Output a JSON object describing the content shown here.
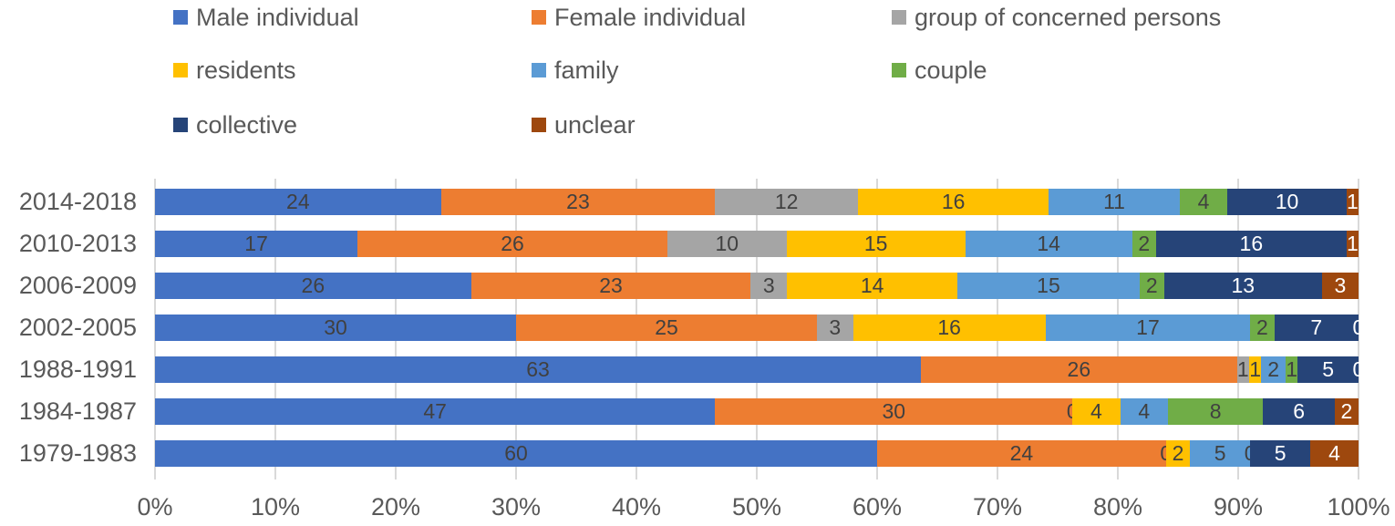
{
  "chart_data": {
    "type": "bar",
    "orientation": "horizontal",
    "stacked": "100-percent",
    "title": "",
    "xlabel": "",
    "ylabel": "",
    "categories": [
      "2014-2018",
      "2010-2013",
      "2006-2009",
      "2002-2005",
      "1988-1991",
      "1984-1987",
      "1979-1983"
    ],
    "series": [
      {
        "name": "Male individual",
        "color": "#4472C4",
        "label_color": "#404040",
        "values": [
          24,
          17,
          26,
          30,
          63,
          47,
          60
        ]
      },
      {
        "name": "Female individual",
        "color": "#ED7D31",
        "label_color": "#404040",
        "values": [
          23,
          26,
          23,
          25,
          26,
          30,
          24
        ]
      },
      {
        "name": "group of concerned persons",
        "color": "#A5A5A5",
        "label_color": "#404040",
        "values": [
          12,
          10,
          3,
          3,
          1,
          0,
          0
        ]
      },
      {
        "name": "residents",
        "color": "#FFC000",
        "label_color": "#404040",
        "values": [
          16,
          15,
          14,
          16,
          1,
          4,
          2
        ]
      },
      {
        "name": "family",
        "color": "#5B9BD5",
        "label_color": "#404040",
        "values": [
          11,
          14,
          15,
          17,
          2,
          4,
          5
        ]
      },
      {
        "name": "couple",
        "color": "#70AD47",
        "label_color": "#404040",
        "values": [
          4,
          2,
          2,
          2,
          1,
          8,
          0
        ]
      },
      {
        "name": "collective",
        "color": "#264478",
        "label_color": "#FFFFFF",
        "values": [
          10,
          16,
          13,
          7,
          5,
          6,
          5
        ]
      },
      {
        "name": "unclear",
        "color": "#9E480E",
        "label_color": "#FFFFFF",
        "values": [
          1,
          1,
          3,
          0,
          0,
          2,
          4
        ]
      }
    ],
    "x_axis": {
      "ticks": [
        "0%",
        "10%",
        "20%",
        "30%",
        "40%",
        "50%",
        "60%",
        "70%",
        "80%",
        "90%",
        "100%"
      ],
      "range": [
        0,
        100
      ]
    },
    "legend_position": "top",
    "gridlines": true,
    "style_colors": {
      "gridline": "#D9D9D9",
      "axis_text": "#595959",
      "legend_text": "#595959",
      "data_label_dark": "#404040",
      "data_label_light": "#FFFFFF"
    }
  }
}
